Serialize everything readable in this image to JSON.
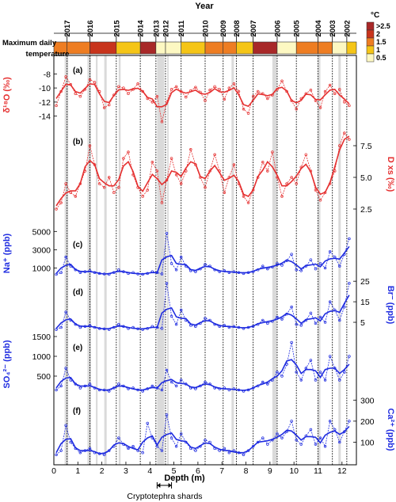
{
  "chart_data": {
    "type": "line",
    "xlabel": "Depth (m)",
    "xlim": [
      0,
      12.6
    ],
    "x_ticks": [
      "0",
      "1",
      "2",
      "3",
      "4",
      "5",
      "6",
      "7",
      "8",
      "9",
      "10",
      "11",
      "12"
    ],
    "year_axis_label": "Year",
    "years": [
      {
        "label": "2017",
        "depth": 0.55
      },
      {
        "label": "2016",
        "depth": 1.5
      },
      {
        "label": "2015",
        "depth": 2.6
      },
      {
        "label": "2014",
        "depth": 3.6
      },
      {
        "label": "2013",
        "depth": 4.25
      },
      {
        "label": "2012",
        "depth": 4.65
      },
      {
        "label": "2011",
        "depth": 5.3
      },
      {
        "label": "2010",
        "depth": 6.3
      },
      {
        "label": "2009",
        "depth": 7.05
      },
      {
        "label": "2008",
        "depth": 7.6
      },
      {
        "label": "2007",
        "depth": 8.3
      },
      {
        "label": "2006",
        "depth": 9.3
      },
      {
        "label": "2005",
        "depth": 10.1
      },
      {
        "label": "2004",
        "depth": 11.0
      },
      {
        "label": "2003",
        "depth": 11.6
      },
      {
        "label": "2002",
        "depth": 12.2
      }
    ],
    "temperature_bar": {
      "label": "Maximum daily temperature",
      "unit": "°C",
      "legend": [
        {
          "label": ">2.5",
          "color": "#a82828"
        },
        {
          "label": "2",
          "color": "#c8341c"
        },
        {
          "label": "1.5",
          "color": "#ee7d22"
        },
        {
          "label": "1",
          "color": "#f5c517"
        },
        {
          "label": "0.5",
          "color": "#fdf8c2"
        }
      ],
      "segments": [
        {
          "from": 0.0,
          "to": 0.55,
          "color": "#ee7d22"
        },
        {
          "from": 0.55,
          "to": 1.5,
          "color": "#ee7d22"
        },
        {
          "from": 1.5,
          "to": 2.6,
          "color": "#c8341c"
        },
        {
          "from": 2.6,
          "to": 3.6,
          "color": "#f5c517"
        },
        {
          "from": 3.6,
          "to": 4.25,
          "color": "#a82828"
        },
        {
          "from": 4.25,
          "to": 4.65,
          "color": "#fdf8c2"
        },
        {
          "from": 4.65,
          "to": 5.3,
          "color": "#fdf8c2"
        },
        {
          "from": 5.3,
          "to": 6.3,
          "color": "#f5c517"
        },
        {
          "from": 6.3,
          "to": 7.05,
          "color": "#ee7d22"
        },
        {
          "from": 7.05,
          "to": 7.6,
          "color": "#ee7d22"
        },
        {
          "from": 7.6,
          "to": 8.3,
          "color": "#f5c517"
        },
        {
          "from": 8.3,
          "to": 9.3,
          "color": "#a82828"
        },
        {
          "from": 9.3,
          "to": 10.1,
          "color": "#fdf8c2"
        },
        {
          "from": 10.1,
          "to": 11.0,
          "color": "#ee7d22"
        },
        {
          "from": 11.0,
          "to": 11.6,
          "color": "#ee7d22"
        },
        {
          "from": 11.6,
          "to": 12.2,
          "color": "#fdf8c2"
        },
        {
          "from": 12.2,
          "to": 12.6,
          "color": "#f5c517"
        }
      ]
    },
    "shaded_depths": [
      [
        0.45,
        0.6
      ],
      [
        1.4,
        1.55
      ],
      [
        1.75,
        1.82
      ],
      [
        2.1,
        2.2
      ],
      [
        2.7,
        2.78
      ],
      [
        4.3,
        4.6
      ],
      [
        4.72,
        4.78
      ],
      [
        7.4,
        7.5
      ],
      [
        9.1,
        9.28
      ],
      [
        11.0,
        11.1
      ],
      [
        11.85,
        11.95
      ]
    ],
    "annotation": "Cryptotephra shards",
    "annotation_range": [
      4.3,
      4.9
    ],
    "panels": [
      {
        "id": "(a)",
        "label": "δ¹⁸O (‰)",
        "side": "left",
        "color": "#e53030",
        "ylim": [
          -15.5,
          -6.5
        ],
        "ticks": [
          "-8",
          "-10",
          "-12",
          "-14"
        ],
        "x": [
          0.1,
          0.3,
          0.5,
          0.7,
          0.9,
          1.1,
          1.3,
          1.5,
          1.7,
          1.9,
          2.1,
          2.3,
          2.5,
          2.7,
          2.9,
          3.1,
          3.3,
          3.5,
          3.7,
          3.9,
          4.1,
          4.3,
          4.5,
          4.7,
          4.9,
          5.1,
          5.3,
          5.5,
          5.7,
          5.9,
          6.1,
          6.3,
          6.5,
          6.7,
          6.9,
          7.1,
          7.3,
          7.5,
          7.7,
          7.9,
          8.1,
          8.3,
          8.5,
          8.7,
          8.9,
          9.1,
          9.3,
          9.5,
          9.7,
          9.9,
          10.1,
          10.3,
          10.5,
          10.7,
          10.9,
          11.1,
          11.3,
          11.5,
          11.7,
          11.9,
          12.1,
          12.3
        ],
        "y": [
          -12.5,
          -10.5,
          -8.4,
          -9.5,
          -10.8,
          -11.2,
          -10.2,
          -8.8,
          -9.2,
          -10.5,
          -12.8,
          -12.4,
          -11.0,
          -9.8,
          -10.0,
          -10.8,
          -10.2,
          -9.4,
          -10.5,
          -11.5,
          -12.0,
          -11.2,
          -14.8,
          -12.0,
          -10.2,
          -9.8,
          -10.5,
          -11.3,
          -10.4,
          -9.9,
          -10.6,
          -11.8,
          -10.3,
          -9.8,
          -10.2,
          -11.6,
          -10.0,
          -9.4,
          -10.5,
          -13.0,
          -13.6,
          -11.2,
          -10.5,
          -10.8,
          -11.5,
          -11.0,
          -10.2,
          -9.0,
          -10.5,
          -11.8,
          -13.0,
          -11.5,
          -10.8,
          -10.3,
          -11.8,
          -12.8,
          -10.5,
          -9.6,
          -10.8,
          -10.2,
          -12.0,
          -12.5
        ]
      },
      {
        "id": "(b)",
        "label": "D xs (‰)",
        "side": "right",
        "color": "#e53030",
        "ylim": [
          1.5,
          9
        ],
        "ticks": [
          "7.5",
          "5.0",
          "2.5"
        ],
        "x": [
          0.1,
          0.3,
          0.5,
          0.7,
          0.9,
          1.1,
          1.3,
          1.5,
          1.7,
          1.9,
          2.1,
          2.3,
          2.5,
          2.7,
          2.9,
          3.1,
          3.3,
          3.5,
          3.7,
          3.9,
          4.1,
          4.3,
          4.5,
          4.7,
          4.9,
          5.1,
          5.3,
          5.5,
          5.7,
          5.9,
          6.1,
          6.3,
          6.5,
          6.7,
          6.9,
          7.1,
          7.3,
          7.5,
          7.7,
          7.9,
          8.1,
          8.3,
          8.5,
          8.7,
          8.9,
          9.1,
          9.3,
          9.5,
          9.7,
          9.9,
          10.1,
          10.3,
          10.5,
          10.7,
          10.9,
          11.1,
          11.3,
          11.5,
          11.7,
          11.9,
          12.1,
          12.3
        ],
        "y": [
          2.5,
          3.0,
          4.5,
          3.8,
          3.5,
          4.5,
          5.5,
          7.5,
          6.0,
          4.5,
          4.2,
          5.0,
          3.8,
          4.2,
          6.5,
          7.0,
          5.2,
          4.2,
          3.5,
          4.0,
          6.2,
          5.5,
          3.0,
          4.8,
          6.5,
          5.2,
          4.5,
          5.5,
          7.2,
          6.0,
          5.0,
          4.2,
          5.5,
          6.8,
          5.5,
          3.8,
          5.0,
          6.0,
          4.5,
          3.5,
          3.0,
          4.0,
          5.0,
          6.2,
          5.5,
          7.0,
          5.0,
          3.5,
          4.5,
          5.0,
          4.5,
          5.8,
          6.8,
          5.5,
          4.0,
          3.2,
          3.8,
          4.5,
          5.5,
          7.5,
          8.5,
          8.0
        ]
      },
      {
        "id": "(c)",
        "label": "Na⁺ (ppb)",
        "side": "left",
        "color": "#1f2ce0",
        "ylim": [
          0,
          5200
        ],
        "ticks": [
          "5000",
          "3000",
          "1000"
        ],
        "x": [
          0.1,
          0.3,
          0.5,
          0.7,
          0.9,
          1.1,
          1.3,
          1.5,
          1.7,
          1.9,
          2.1,
          2.3,
          2.5,
          2.7,
          2.9,
          3.1,
          3.3,
          3.5,
          3.7,
          3.9,
          4.1,
          4.3,
          4.5,
          4.7,
          4.9,
          5.1,
          5.3,
          5.5,
          5.7,
          5.9,
          6.1,
          6.3,
          6.5,
          6.7,
          6.9,
          7.1,
          7.3,
          7.5,
          7.7,
          7.9,
          8.1,
          8.3,
          8.5,
          8.7,
          8.9,
          9.1,
          9.3,
          9.5,
          9.7,
          9.9,
          10.1,
          10.3,
          10.5,
          10.7,
          10.9,
          11.1,
          11.3,
          11.5,
          11.7,
          11.9,
          12.1,
          12.3
        ],
        "y": [
          300,
          500,
          2200,
          1200,
          800,
          500,
          600,
          700,
          500,
          400,
          350,
          300,
          500,
          800,
          600,
          400,
          500,
          350,
          300,
          400,
          600,
          500,
          350,
          4800,
          1500,
          800,
          2200,
          1200,
          700,
          600,
          900,
          1400,
          1200,
          800,
          600,
          700,
          500,
          600,
          500,
          400,
          500,
          600,
          800,
          1200,
          900,
          1100,
          1500,
          1300,
          1800,
          2500,
          800,
          700,
          1200,
          1900,
          900,
          1500,
          1000,
          2800,
          2200,
          1200,
          2500,
          4200
        ]
      },
      {
        "id": "(d)",
        "label": "Br⁻ (ppb)",
        "side": "right",
        "color": "#1f2ce0",
        "ylim": [
          0,
          27
        ],
        "ticks": [
          "25",
          "15",
          "5"
        ],
        "x": [
          0.1,
          0.3,
          0.5,
          0.7,
          0.9,
          1.1,
          1.3,
          1.5,
          1.7,
          1.9,
          2.1,
          2.3,
          2.5,
          2.7,
          2.9,
          3.1,
          3.3,
          3.5,
          3.7,
          3.9,
          4.1,
          4.3,
          4.5,
          4.7,
          4.9,
          5.1,
          5.3,
          5.5,
          5.7,
          5.9,
          6.1,
          6.3,
          6.5,
          6.7,
          6.9,
          7.1,
          7.3,
          7.5,
          7.7,
          7.9,
          8.1,
          8.3,
          8.5,
          8.7,
          8.9,
          9.1,
          9.3,
          9.5,
          9.7,
          9.9,
          10.1,
          10.3,
          10.5,
          10.7,
          10.9,
          11.1,
          11.3,
          11.5,
          11.7,
          11.9,
          12.1,
          12.3
        ],
        "y": [
          1.5,
          2.5,
          10,
          6,
          4,
          2.5,
          3,
          3.5,
          2.5,
          2,
          1.8,
          1.5,
          2.5,
          4,
          3,
          2,
          2.5,
          1.8,
          1.5,
          2,
          3,
          2.5,
          2,
          24,
          8,
          4,
          11,
          6,
          3.5,
          3,
          4.5,
          7,
          6,
          4,
          3,
          3.5,
          2.5,
          3,
          2.5,
          2,
          2.5,
          3,
          4,
          6,
          4.5,
          5.5,
          7.5,
          6.5,
          9,
          12.5,
          4,
          3.5,
          6,
          9.5,
          4.5,
          7.5,
          5,
          15,
          11,
          6,
          12.5,
          24
        ]
      },
      {
        "id": "(e)",
        "label": "SO₄²⁻ (ppb)",
        "side": "left",
        "color": "#1f2ce0",
        "ylim": [
          0,
          1600
        ],
        "ticks": [
          "1500",
          "1000",
          "500"
        ],
        "x": [
          0.1,
          0.3,
          0.5,
          0.7,
          0.9,
          1.1,
          1.3,
          1.5,
          1.7,
          1.9,
          2.1,
          2.3,
          2.5,
          2.7,
          2.9,
          3.1,
          3.3,
          3.5,
          3.7,
          3.9,
          4.1,
          4.3,
          4.5,
          4.7,
          4.9,
          5.1,
          5.3,
          5.5,
          5.7,
          5.9,
          6.1,
          6.3,
          6.5,
          6.7,
          6.9,
          7.1,
          7.3,
          7.5,
          7.7,
          7.9,
          8.1,
          8.3,
          8.5,
          8.7,
          8.9,
          9.1,
          9.3,
          9.5,
          9.7,
          9.9,
          10.1,
          10.3,
          10.5,
          10.7,
          10.9,
          11.1,
          11.3,
          11.5,
          11.7,
          11.9,
          12.1,
          12.3
        ],
        "y": [
          150,
          250,
          700,
          400,
          300,
          200,
          250,
          300,
          200,
          150,
          150,
          120,
          200,
          300,
          250,
          180,
          200,
          150,
          120,
          180,
          250,
          200,
          150,
          650,
          350,
          250,
          400,
          300,
          200,
          180,
          250,
          350,
          300,
          200,
          180,
          200,
          150,
          180,
          150,
          120,
          150,
          200,
          250,
          350,
          300,
          400,
          600,
          500,
          800,
          1350,
          600,
          400,
          700,
          900,
          400,
          600,
          400,
          1000,
          700,
          400,
          600,
          1000
        ]
      },
      {
        "id": "(f)",
        "label": "Ca²⁺ (ppb)",
        "side": "right",
        "color": "#1f2ce0",
        "ylim": [
          0,
          320
        ],
        "ticks": [
          "300",
          "200",
          "100"
        ],
        "x": [
          0.1,
          0.3,
          0.5,
          0.7,
          0.9,
          1.1,
          1.3,
          1.5,
          1.7,
          1.9,
          2.1,
          2.3,
          2.5,
          2.7,
          2.9,
          3.1,
          3.3,
          3.5,
          3.7,
          3.9,
          4.1,
          4.3,
          4.5,
          4.7,
          4.9,
          5.1,
          5.3,
          5.5,
          5.7,
          5.9,
          6.1,
          6.3,
          6.5,
          6.7,
          6.9,
          7.1,
          7.3,
          7.5,
          7.7,
          7.9,
          8.1,
          8.3,
          8.5,
          8.7,
          8.9,
          9.1,
          9.3,
          9.5,
          9.7,
          9.9,
          10.1,
          10.3,
          10.5,
          10.7,
          10.9,
          11.1,
          11.3,
          11.5,
          11.7,
          11.9,
          12.1,
          12.3
        ],
        "y": [
          40,
          60,
          180,
          100,
          70,
          50,
          60,
          70,
          50,
          45,
          40,
          60,
          80,
          120,
          90,
          70,
          80,
          60,
          50,
          190,
          120,
          80,
          60,
          230,
          120,
          80,
          140,
          100,
          70,
          60,
          80,
          110,
          100,
          70,
          60,
          70,
          50,
          60,
          50,
          40,
          60,
          80,
          100,
          120,
          90,
          110,
          140,
          120,
          150,
          200,
          110,
          90,
          130,
          160,
          90,
          120,
          80,
          200,
          160,
          100,
          150,
          200
        ]
      }
    ]
  }
}
